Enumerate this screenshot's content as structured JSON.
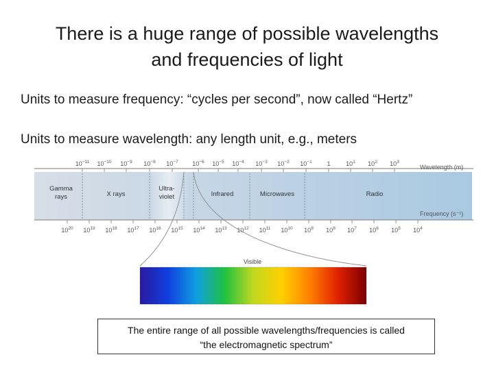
{
  "slide": {
    "title_line1": "There is a huge range of possible wavelengths",
    "title_line2": "and frequencies of light",
    "bullet1": "Units to measure frequency: “cycles per second”, now called “Hertz”",
    "bullet2": "Units to measure wavelength: any length unit, e.g., meters"
  },
  "diagram": {
    "wavelength_axis_label": "Wavelength (m)",
    "frequency_axis_label": "Frequency (s⁻¹)",
    "wavelength_ticks": [
      {
        "base": "10",
        "exp": "−11"
      },
      {
        "base": "10",
        "exp": "−10"
      },
      {
        "base": "10",
        "exp": "−9"
      },
      {
        "base": "10",
        "exp": "−8"
      },
      {
        "base": "10",
        "exp": "−7"
      },
      {
        "base": "10",
        "exp": "−6"
      },
      {
        "base": "10",
        "exp": "−5"
      },
      {
        "base": "10",
        "exp": "−4"
      },
      {
        "base": "10",
        "exp": "−3"
      },
      {
        "base": "10",
        "exp": "−2"
      },
      {
        "base": "10",
        "exp": "−1"
      },
      {
        "base": "1",
        "exp": ""
      },
      {
        "base": "10",
        "exp": "1"
      },
      {
        "base": "10",
        "exp": "2"
      },
      {
        "base": "10",
        "exp": "3"
      }
    ],
    "frequency_ticks": [
      {
        "base": "10",
        "exp": "20"
      },
      {
        "base": "10",
        "exp": "19"
      },
      {
        "base": "10",
        "exp": "18"
      },
      {
        "base": "10",
        "exp": "17"
      },
      {
        "base": "10",
        "exp": "16"
      },
      {
        "base": "10",
        "exp": "15"
      },
      {
        "base": "10",
        "exp": "14"
      },
      {
        "base": "10",
        "exp": "13"
      },
      {
        "base": "10",
        "exp": "12"
      },
      {
        "base": "10",
        "exp": "11"
      },
      {
        "base": "10",
        "exp": "10"
      },
      {
        "base": "10",
        "exp": "9"
      },
      {
        "base": "10",
        "exp": "8"
      },
      {
        "base": "10",
        "exp": "7"
      },
      {
        "base": "10",
        "exp": "6"
      },
      {
        "base": "10",
        "exp": "5"
      },
      {
        "base": "10",
        "exp": "4"
      }
    ],
    "regions": [
      {
        "line1": "Gamma",
        "line2": "rays"
      },
      {
        "line1": "X rays",
        "line2": ""
      },
      {
        "line1": "Ultra-",
        "line2": "violet"
      },
      {
        "line1": "Infrared",
        "line2": ""
      },
      {
        "line1": "Microwaves",
        "line2": ""
      },
      {
        "line1": "Radio",
        "line2": ""
      }
    ],
    "visible_label": "Visible",
    "band_colors": [
      "#d7dee7",
      "#a9c9e2"
    ],
    "visible_gradient": [
      "#2a1aa0",
      "#1040e0",
      "#10a0e0",
      "#20c040",
      "#c0d820",
      "#ffd000",
      "#ff8000",
      "#e02000",
      "#7a0000"
    ]
  },
  "note": {
    "line1": "The entire range of all possible wavelengths/frequencies is called",
    "line2": "“the electromagnetic spectrum”"
  }
}
